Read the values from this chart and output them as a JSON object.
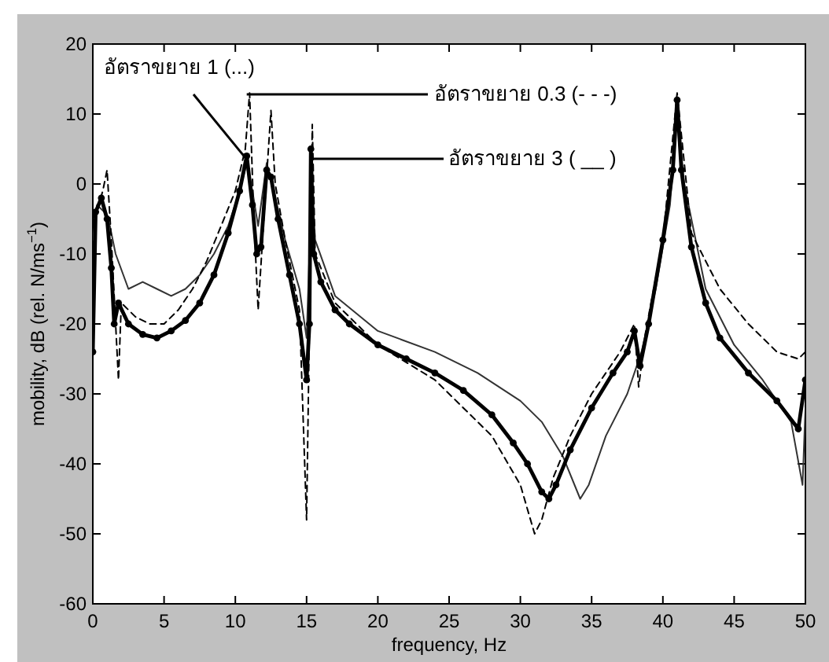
{
  "chart_data": {
    "type": "line",
    "xlabel": "frequency, Hz",
    "ylabel": "mobility, dB (rel. N/ms$^{−1}$)",
    "xlim": [
      0,
      50
    ],
    "ylim": [
      -60,
      20
    ],
    "xticks": [
      0,
      5,
      10,
      15,
      20,
      25,
      30,
      35,
      40,
      45,
      50
    ],
    "yticks": [
      -60,
      -50,
      -40,
      -30,
      -20,
      -10,
      0,
      10,
      20
    ],
    "series": [
      {
        "color": "#000000",
        "marker": "circle",
        "line_style": "solid",
        "x": [
          0,
          0.2,
          0.6,
          1.0,
          1.3,
          1.5,
          1.8,
          2.5,
          3.5,
          4.5,
          5.5,
          6.5,
          7.5,
          8.5,
          9.5,
          10.3,
          10.8,
          11.2,
          11.5,
          11.8,
          12.2,
          12.5,
          13,
          13.8,
          14.5,
          15.0,
          15.2,
          15.3,
          15.5,
          16,
          17,
          18,
          20,
          22,
          24,
          26,
          28,
          29.5,
          30.5,
          31.5,
          32,
          32.5,
          33.5,
          35,
          36.5,
          37.5,
          38,
          38.4,
          39,
          40,
          40.7,
          41,
          41.3,
          42,
          43,
          44,
          46,
          48,
          49.5,
          50
        ],
        "values": [
          -24,
          -4,
          -2,
          -5,
          -12,
          -20,
          -17,
          -20,
          -21.5,
          -22,
          -21,
          -19.5,
          -17,
          -13,
          -7,
          -1,
          4,
          -3,
          -10,
          -9,
          2,
          1,
          -5,
          -13,
          -20,
          -28,
          -20,
          5,
          -10,
          -14,
          -18,
          -20,
          -23,
          -25,
          -27,
          -29.5,
          -33,
          -37,
          -40,
          -44,
          -45,
          -43,
          -38,
          -32,
          -27,
          -24,
          -21,
          -26,
          -20,
          -8,
          2,
          12,
          2,
          -9,
          -17,
          -22,
          -27,
          -31,
          -35,
          -28
        ]
      },
      {
        "color": "#000000",
        "line_style": "dashed",
        "x": [
          0,
          0.4,
          0.7,
          1.0,
          1.3,
          1.8,
          2.0,
          3,
          4,
          5,
          6,
          7,
          8,
          9,
          10,
          10.7,
          11.0,
          11.3,
          11.6,
          12,
          12.5,
          12.8,
          13.5,
          14.5,
          15.0,
          15.2,
          15.4,
          15.6,
          17,
          20,
          24,
          28,
          30,
          31,
          31.5,
          32.3,
          33.5,
          35,
          37,
          38,
          38.3,
          38.8,
          40,
          41,
          42,
          44,
          46,
          48,
          49.5,
          50
        ],
        "values": [
          -5,
          -3,
          -1,
          2,
          -8,
          -28,
          -17,
          -19,
          -20,
          -20,
          -18,
          -15,
          -11,
          -6,
          -1,
          5,
          13,
          -5,
          -18,
          -5,
          10.5,
          0,
          -8,
          -18,
          -48,
          -20,
          8.5,
          -10,
          -17,
          -23,
          -28,
          -36,
          -43,
          -50,
          -48,
          -42,
          -36,
          -30,
          -24,
          -20,
          -29,
          -21,
          -8,
          13,
          -7,
          -15,
          -20,
          -24,
          -25,
          -24
        ]
      },
      {
        "color": "#333333",
        "line_style": "solid",
        "x": [
          0,
          0.3,
          0.8,
          1.2,
          1.6,
          2.5,
          3.5,
          4.5,
          5.5,
          6.5,
          7.5,
          8.5,
          9.5,
          10.3,
          10.8,
          11.2,
          11.6,
          12.2,
          12.8,
          13.5,
          14.5,
          15.0,
          15.2,
          15.3,
          15.6,
          17,
          20,
          24,
          27,
          30,
          31.5,
          33,
          34.2,
          34.8,
          36,
          37.5,
          38.5,
          39.5,
          40.5,
          41,
          41.5,
          43,
          45,
          47,
          49,
          49.8,
          50
        ],
        "values": [
          -8,
          -3,
          -4,
          -6,
          -10,
          -15,
          -14,
          -15,
          -16,
          -15,
          -13,
          -10,
          -6,
          -1,
          3,
          -1,
          -6,
          3,
          -2,
          -8,
          -15,
          -22,
          -10,
          1,
          -8,
          -16,
          -21,
          -24,
          -27,
          -31,
          -34,
          -39,
          -45,
          -43,
          -36,
          -30,
          -24,
          -15,
          -3,
          10,
          0,
          -15,
          -23,
          -28,
          -34,
          -43,
          -32
        ]
      }
    ],
    "annotations": [
      {
        "text": "อัตราขยาย 1 (...)",
        "x": 10.6,
        "y": 4
      },
      {
        "text": "อัตราขยาย 0.3 (- - -)",
        "x": 10.8,
        "y": 12.8
      },
      {
        "text": "อัตราขยาย 3 ( __ )",
        "x": 15.5,
        "y": 3.6
      }
    ]
  }
}
